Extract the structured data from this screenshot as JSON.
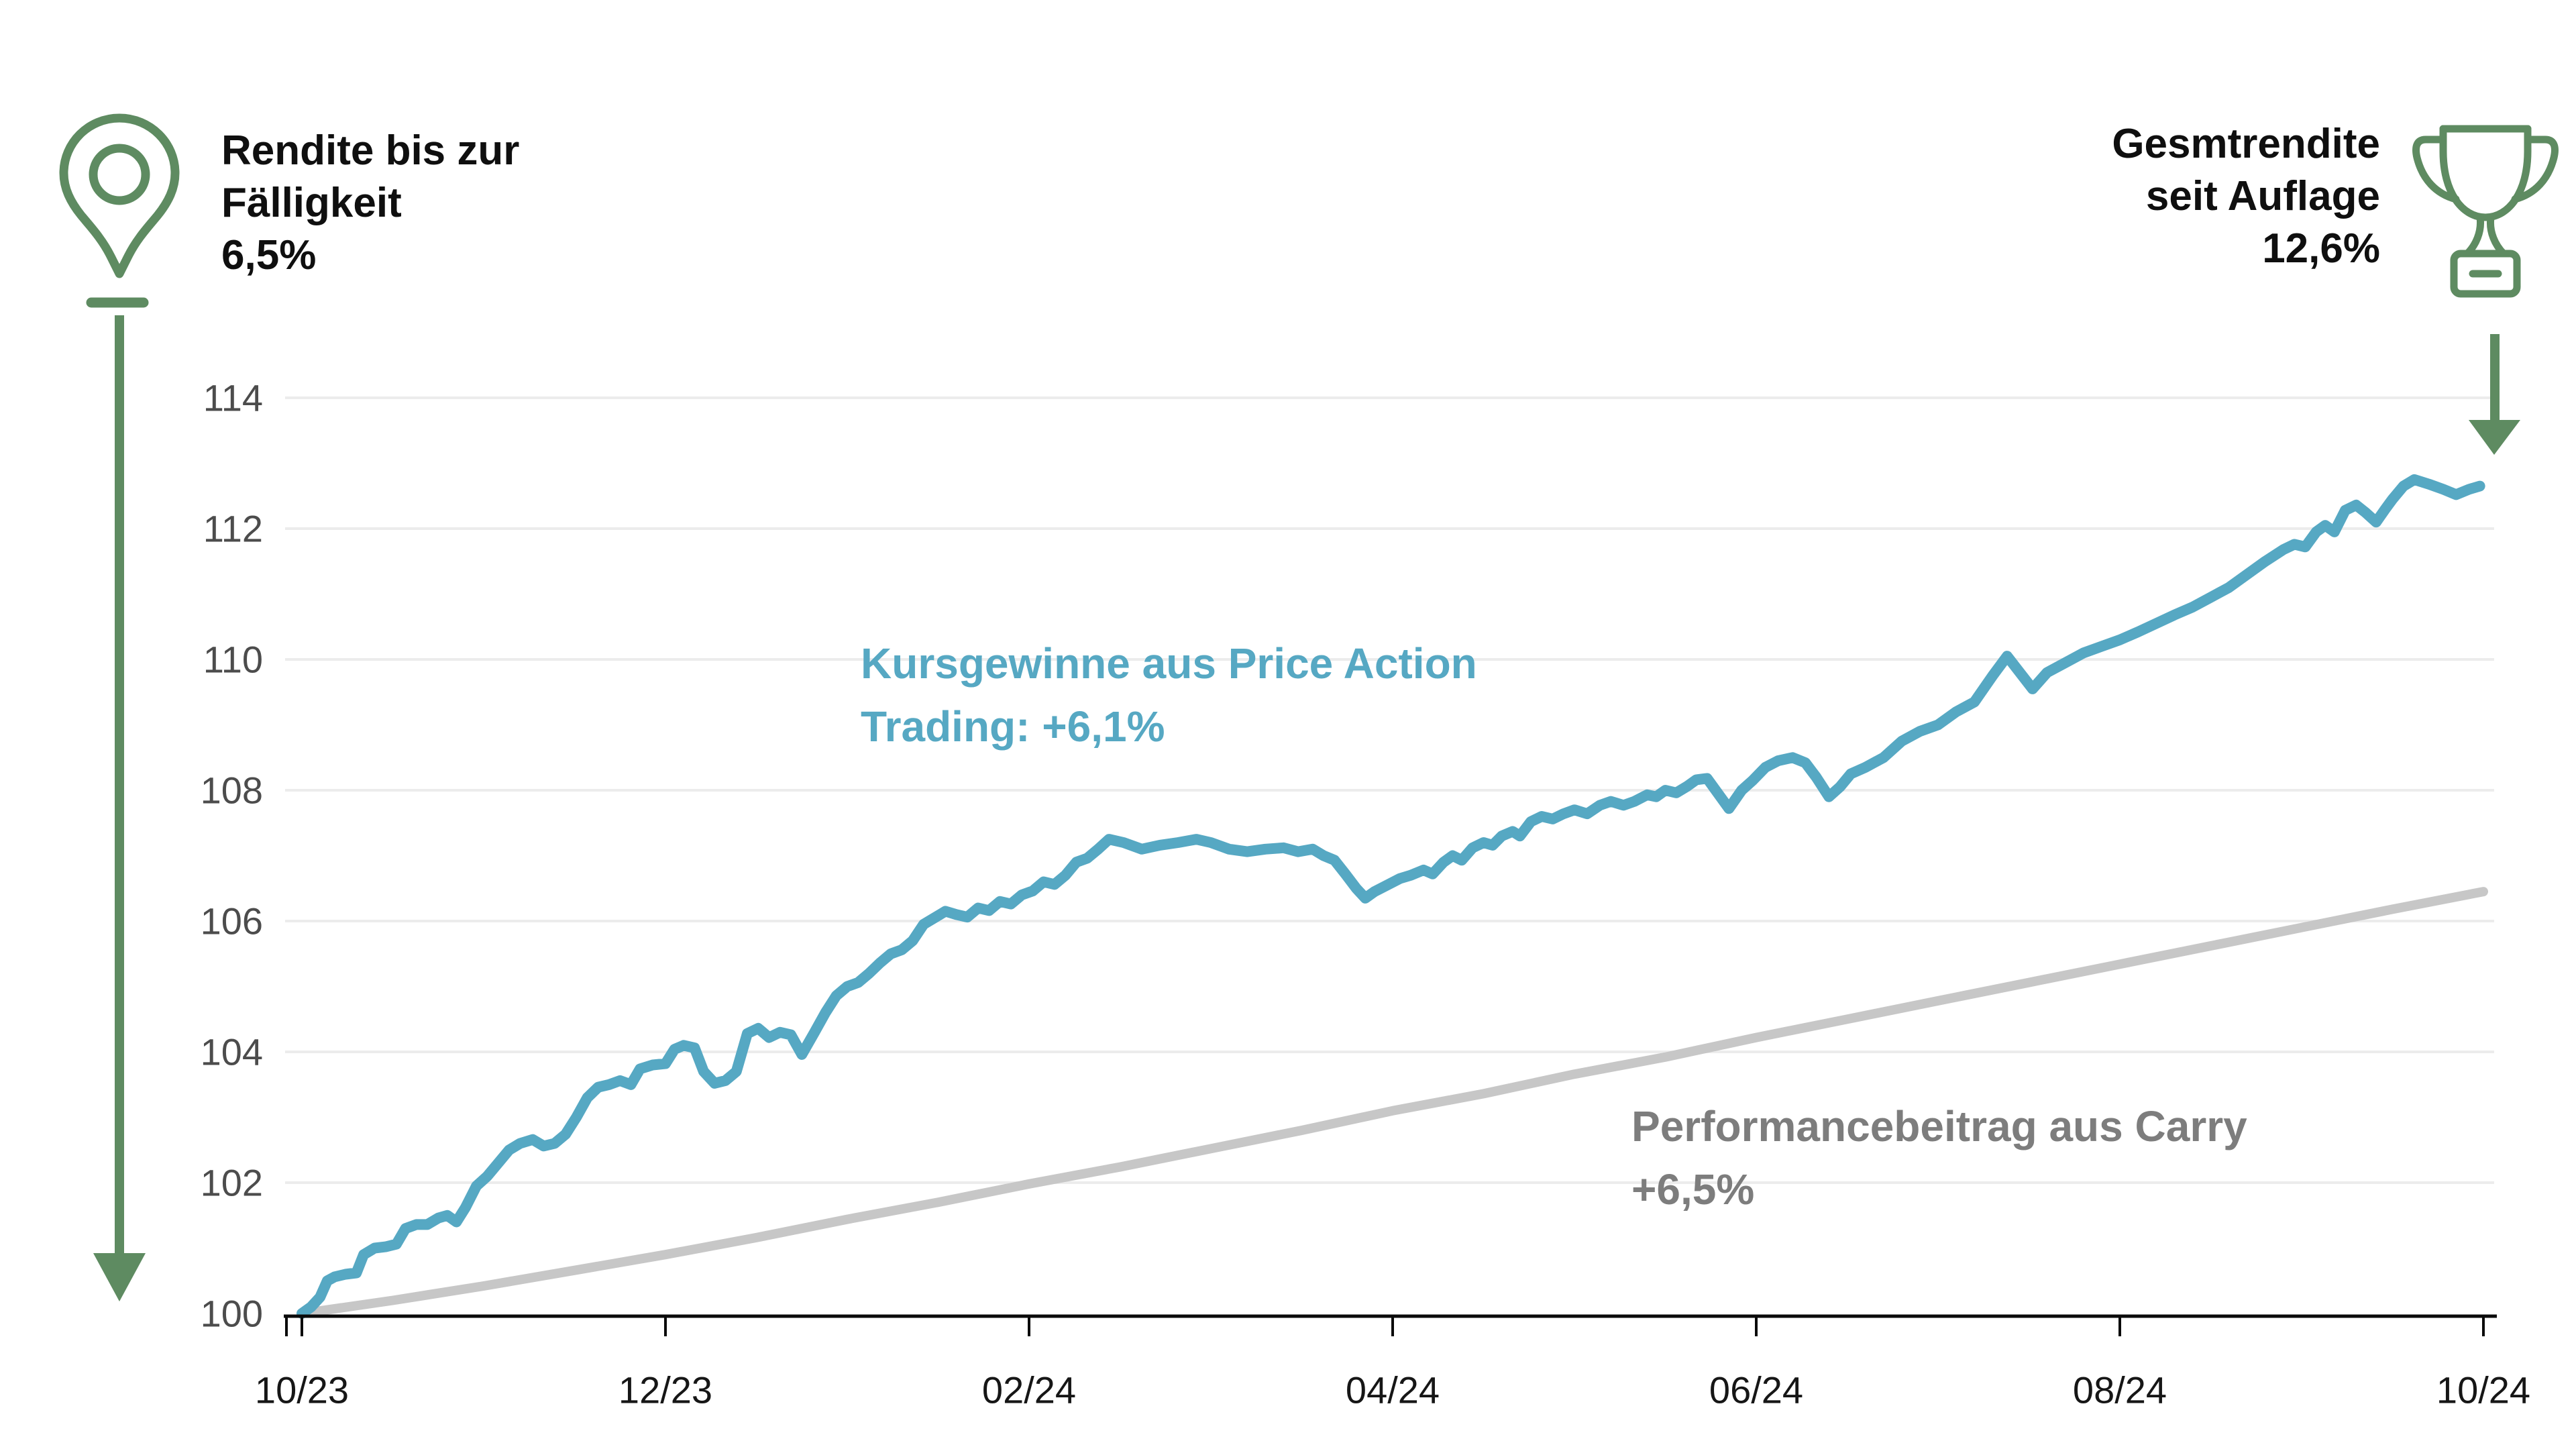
{
  "annotations": {
    "left": {
      "icon": "map-pin-icon",
      "lines": [
        "Rendite bis zur",
        "Fälligkeit",
        "6,5%"
      ]
    },
    "right": {
      "icon": "trophy-icon",
      "lines": [
        "Gesmtrendite",
        "seit Auflage",
        "12,6%"
      ]
    },
    "series_label_total": {
      "lines": [
        "Kursgewinne aus Price Action",
        "Trading: +6,1%"
      ]
    },
    "series_label_carry": {
      "lines": [
        "Performancebeitrag aus Carry",
        "+6,5%"
      ]
    }
  },
  "colors": {
    "green": "#5e8b61",
    "teal": "#56a8c3",
    "carry_gray": "#c7c7c7",
    "gray_text": "#7d7d7d",
    "y_label": "#4c4c4c",
    "x_label": "#161616",
    "grid": "#ececec",
    "axis": "#0a0a0a"
  },
  "chart_data": {
    "type": "line",
    "title": "",
    "xlabel": "",
    "ylabel": "",
    "x_unit": "months since 10/23",
    "ylim": [
      100,
      114.5
    ],
    "grid": "horizontal-only",
    "legend_position": "inline-labels",
    "x_ticks": [
      {
        "label": "10/23",
        "t": 0
      },
      {
        "label": "12/23",
        "t": 2
      },
      {
        "label": "02/24",
        "t": 4
      },
      {
        "label": "04/24",
        "t": 6
      },
      {
        "label": "06/24",
        "t": 8
      },
      {
        "label": "08/24",
        "t": 10
      },
      {
        "label": "10/24",
        "t": 12
      }
    ],
    "y_ticks": [
      100,
      102,
      104,
      106,
      108,
      110,
      112,
      114
    ],
    "series": [
      {
        "name": "Performancebeitrag aus Carry +6,5%",
        "color_key": "carry_gray",
        "stroke_width": 14,
        "points": [
          [
            0,
            100
          ],
          [
            0.5,
            100.2
          ],
          [
            1,
            100.42
          ],
          [
            1.5,
            100.66
          ],
          [
            2,
            100.9
          ],
          [
            2.5,
            101.16
          ],
          [
            3,
            101.44
          ],
          [
            3.5,
            101.7
          ],
          [
            4,
            101.98
          ],
          [
            4.5,
            102.24
          ],
          [
            5,
            102.52
          ],
          [
            5.5,
            102.8
          ],
          [
            6,
            103.1
          ],
          [
            6.5,
            103.36
          ],
          [
            7,
            103.66
          ],
          [
            7.5,
            103.92
          ],
          [
            8,
            104.22
          ],
          [
            8.5,
            104.5
          ],
          [
            9,
            104.78
          ],
          [
            9.5,
            105.06
          ],
          [
            10,
            105.34
          ],
          [
            10.5,
            105.62
          ],
          [
            11,
            105.9
          ],
          [
            11.5,
            106.18
          ],
          [
            12,
            106.45
          ]
        ]
      },
      {
        "name": "Kursgewinne aus Price Action Trading: +6,1% (Gesamtindex)",
        "color_key": "teal",
        "stroke_width": 16,
        "points": [
          [
            0,
            100
          ],
          [
            0.05,
            100.1
          ],
          [
            0.1,
            100.25
          ],
          [
            0.14,
            100.5
          ],
          [
            0.18,
            100.56
          ],
          [
            0.24,
            100.6
          ],
          [
            0.3,
            100.62
          ],
          [
            0.34,
            100.9
          ],
          [
            0.4,
            101.0
          ],
          [
            0.46,
            101.02
          ],
          [
            0.52,
            101.06
          ],
          [
            0.57,
            101.3
          ],
          [
            0.63,
            101.36
          ],
          [
            0.69,
            101.36
          ],
          [
            0.75,
            101.46
          ],
          [
            0.8,
            101.5
          ],
          [
            0.85,
            101.4
          ],
          [
            0.9,
            101.62
          ],
          [
            0.96,
            101.95
          ],
          [
            1.02,
            102.1
          ],
          [
            1.08,
            102.3
          ],
          [
            1.14,
            102.5
          ],
          [
            1.2,
            102.6
          ],
          [
            1.27,
            102.66
          ],
          [
            1.33,
            102.56
          ],
          [
            1.39,
            102.6
          ],
          [
            1.45,
            102.74
          ],
          [
            1.51,
            103.0
          ],
          [
            1.57,
            103.3
          ],
          [
            1.63,
            103.46
          ],
          [
            1.69,
            103.5
          ],
          [
            1.75,
            103.56
          ],
          [
            1.81,
            103.5
          ],
          [
            1.86,
            103.74
          ],
          [
            1.93,
            103.8
          ],
          [
            2.0,
            103.82
          ],
          [
            2.05,
            104.04
          ],
          [
            2.1,
            104.1
          ],
          [
            2.16,
            104.06
          ],
          [
            2.21,
            103.7
          ],
          [
            2.27,
            103.52
          ],
          [
            2.33,
            103.56
          ],
          [
            2.39,
            103.7
          ],
          [
            2.45,
            104.28
          ],
          [
            2.51,
            104.36
          ],
          [
            2.57,
            104.22
          ],
          [
            2.63,
            104.3
          ],
          [
            2.69,
            104.26
          ],
          [
            2.75,
            103.96
          ],
          [
            2.82,
            104.3
          ],
          [
            2.88,
            104.6
          ],
          [
            2.94,
            104.86
          ],
          [
            3.0,
            105.0
          ],
          [
            3.06,
            105.06
          ],
          [
            3.12,
            105.2
          ],
          [
            3.18,
            105.36
          ],
          [
            3.24,
            105.5
          ],
          [
            3.3,
            105.56
          ],
          [
            3.36,
            105.7
          ],
          [
            3.42,
            105.95
          ],
          [
            3.48,
            106.05
          ],
          [
            3.54,
            106.15
          ],
          [
            3.6,
            106.1
          ],
          [
            3.66,
            106.06
          ],
          [
            3.72,
            106.2
          ],
          [
            3.78,
            106.16
          ],
          [
            3.84,
            106.3
          ],
          [
            3.9,
            106.26
          ],
          [
            3.96,
            106.4
          ],
          [
            4.02,
            106.46
          ],
          [
            4.08,
            106.6
          ],
          [
            4.14,
            106.56
          ],
          [
            4.2,
            106.7
          ],
          [
            4.26,
            106.9
          ],
          [
            4.32,
            106.96
          ],
          [
            4.38,
            107.1
          ],
          [
            4.44,
            107.25
          ],
          [
            4.52,
            107.2
          ],
          [
            4.62,
            107.1
          ],
          [
            4.72,
            107.16
          ],
          [
            4.82,
            107.2
          ],
          [
            4.92,
            107.25
          ],
          [
            5.0,
            107.2
          ],
          [
            5.1,
            107.1
          ],
          [
            5.2,
            107.06
          ],
          [
            5.3,
            107.1
          ],
          [
            5.4,
            107.12
          ],
          [
            5.48,
            107.06
          ],
          [
            5.56,
            107.1
          ],
          [
            5.62,
            107.0
          ],
          [
            5.68,
            106.93
          ],
          [
            5.74,
            106.72
          ],
          [
            5.8,
            106.5
          ],
          [
            5.85,
            106.35
          ],
          [
            5.9,
            106.45
          ],
          [
            5.97,
            106.55
          ],
          [
            6.04,
            106.65
          ],
          [
            6.1,
            106.7
          ],
          [
            6.17,
            106.78
          ],
          [
            6.22,
            106.72
          ],
          [
            6.28,
            106.9
          ],
          [
            6.33,
            107.0
          ],
          [
            6.38,
            106.93
          ],
          [
            6.44,
            107.12
          ],
          [
            6.5,
            107.2
          ],
          [
            6.55,
            107.16
          ],
          [
            6.6,
            107.3
          ],
          [
            6.66,
            107.37
          ],
          [
            6.7,
            107.3
          ],
          [
            6.76,
            107.52
          ],
          [
            6.82,
            107.6
          ],
          [
            6.88,
            107.56
          ],
          [
            6.94,
            107.64
          ],
          [
            7.0,
            107.7
          ],
          [
            7.07,
            107.64
          ],
          [
            7.14,
            107.77
          ],
          [
            7.2,
            107.83
          ],
          [
            7.27,
            107.77
          ],
          [
            7.33,
            107.83
          ],
          [
            7.4,
            107.93
          ],
          [
            7.45,
            107.9
          ],
          [
            7.5,
            108.0
          ],
          [
            7.56,
            107.96
          ],
          [
            7.62,
            108.06
          ],
          [
            7.67,
            108.16
          ],
          [
            7.73,
            108.18
          ],
          [
            7.79,
            107.95
          ],
          [
            7.85,
            107.72
          ],
          [
            7.92,
            108.0
          ],
          [
            7.98,
            108.15
          ],
          [
            8.05,
            108.35
          ],
          [
            8.12,
            108.45
          ],
          [
            8.2,
            108.5
          ],
          [
            8.27,
            108.42
          ],
          [
            8.33,
            108.2
          ],
          [
            8.4,
            107.9
          ],
          [
            8.46,
            108.05
          ],
          [
            8.52,
            108.25
          ],
          [
            8.6,
            108.35
          ],
          [
            8.7,
            108.5
          ],
          [
            8.8,
            108.75
          ],
          [
            8.9,
            108.9
          ],
          [
            9.0,
            109.0
          ],
          [
            9.1,
            109.2
          ],
          [
            9.2,
            109.35
          ],
          [
            9.3,
            109.75
          ],
          [
            9.38,
            110.05
          ],
          [
            9.45,
            109.8
          ],
          [
            9.52,
            109.55
          ],
          [
            9.6,
            109.8
          ],
          [
            9.7,
            109.95
          ],
          [
            9.8,
            110.1
          ],
          [
            9.9,
            110.2
          ],
          [
            10.0,
            110.3
          ],
          [
            10.1,
            110.42
          ],
          [
            10.2,
            110.55
          ],
          [
            10.3,
            110.68
          ],
          [
            10.4,
            110.8
          ],
          [
            10.5,
            110.95
          ],
          [
            10.6,
            111.1
          ],
          [
            10.7,
            111.3
          ],
          [
            10.8,
            111.5
          ],
          [
            10.9,
            111.68
          ],
          [
            10.96,
            111.76
          ],
          [
            11.02,
            111.72
          ],
          [
            11.08,
            111.95
          ],
          [
            11.13,
            112.05
          ],
          [
            11.18,
            111.95
          ],
          [
            11.24,
            112.28
          ],
          [
            11.3,
            112.36
          ],
          [
            11.35,
            112.25
          ],
          [
            11.41,
            112.1
          ],
          [
            11.46,
            112.3
          ],
          [
            11.5,
            112.45
          ],
          [
            11.56,
            112.65
          ],
          [
            11.62,
            112.75
          ],
          [
            11.7,
            112.68
          ],
          [
            11.78,
            112.6
          ],
          [
            11.85,
            112.52
          ],
          [
            11.92,
            112.6
          ],
          [
            11.98,
            112.65
          ]
        ]
      }
    ]
  }
}
